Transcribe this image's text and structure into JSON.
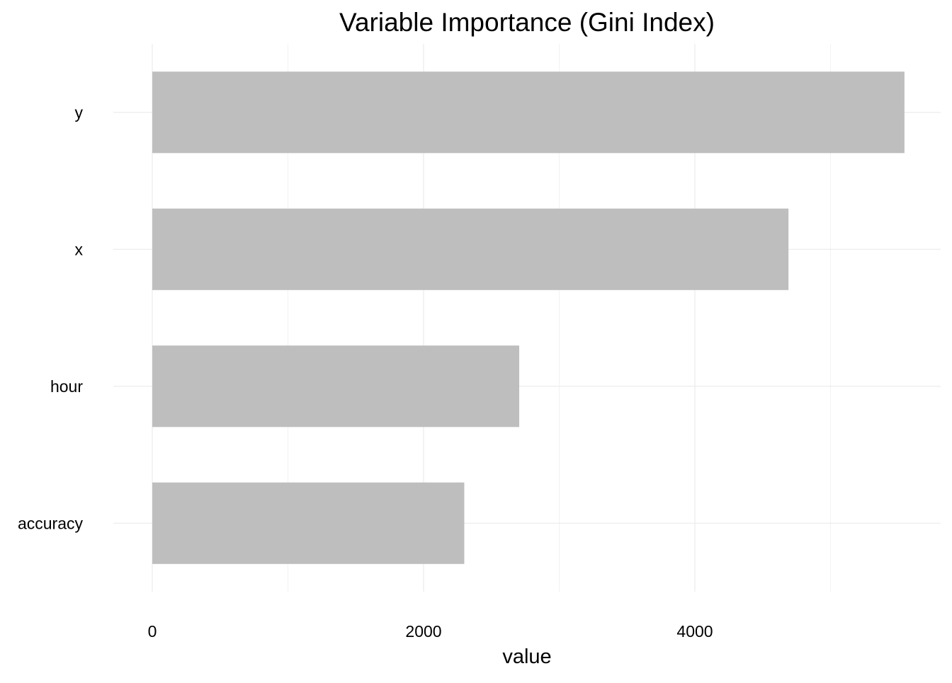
{
  "chart_data": {
    "type": "bar",
    "orientation": "horizontal",
    "title": "Variable Importance (Gini Index)",
    "xlabel": "value",
    "ylabel": "",
    "categories": [
      "y",
      "x",
      "hour",
      "accuracy"
    ],
    "values": [
      5545,
      4690,
      2705,
      2300
    ],
    "xlim": [
      0,
      5820
    ],
    "xticks": [
      0,
      2000,
      4000
    ],
    "xtick_labels": [
      "0",
      "2000",
      "4000"
    ],
    "grid": true,
    "legend": "none",
    "colors": {
      "bar": "#bebebe",
      "grid_major": "#ebebeb",
      "grid_minor": "#f2f2f2",
      "background": "#ffffff"
    }
  }
}
